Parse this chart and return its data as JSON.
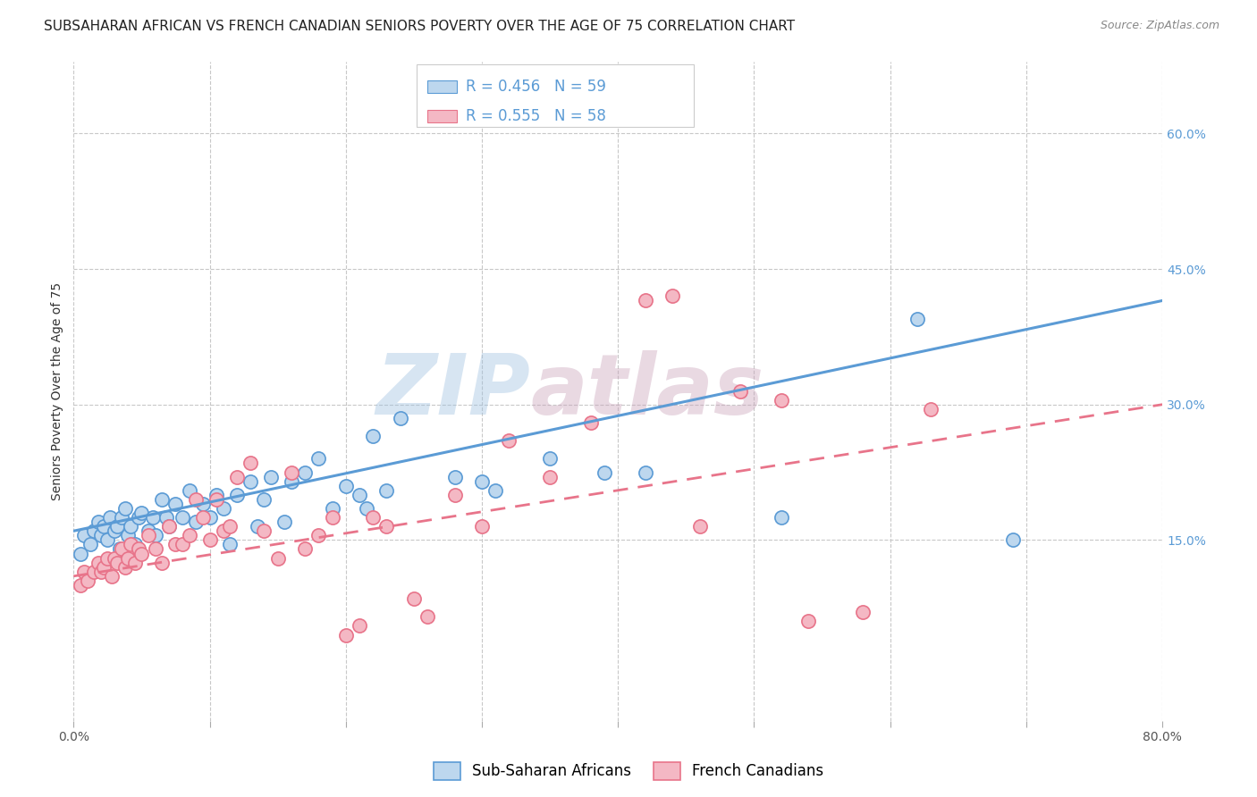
{
  "title": "SUBSAHARAN AFRICAN VS FRENCH CANADIAN SENIORS POVERTY OVER THE AGE OF 75 CORRELATION CHART",
  "source": "Source: ZipAtlas.com",
  "ylabel": "Seniors Poverty Over the Age of 75",
  "x_min": 0.0,
  "x_max": 0.8,
  "y_min": -0.05,
  "y_max": 0.68,
  "x_ticks": [
    0.0,
    0.1,
    0.2,
    0.3,
    0.4,
    0.5,
    0.6,
    0.7,
    0.8
  ],
  "y_ticks": [
    0.15,
    0.3,
    0.45,
    0.6
  ],
  "y_tick_labels": [
    "15.0%",
    "30.0%",
    "45.0%",
    "60.0%"
  ],
  "blue_color": "#5b9bd5",
  "blue_fill": "#bdd7ee",
  "pink_color": "#e8748a",
  "pink_fill": "#f4b8c4",
  "blue_label": "Sub-Saharan Africans",
  "pink_label": "French Canadians",
  "legend_r_blue": "R = 0.456",
  "legend_n_blue": "N = 59",
  "legend_r_pink": "R = 0.555",
  "legend_n_pink": "N = 58",
  "blue_scatter_x": [
    0.005,
    0.008,
    0.012,
    0.015,
    0.018,
    0.02,
    0.022,
    0.025,
    0.027,
    0.03,
    0.032,
    0.034,
    0.035,
    0.038,
    0.04,
    0.042,
    0.045,
    0.048,
    0.05,
    0.055,
    0.058,
    0.06,
    0.065,
    0.068,
    0.07,
    0.075,
    0.08,
    0.085,
    0.09,
    0.095,
    0.1,
    0.105,
    0.11,
    0.115,
    0.12,
    0.13,
    0.135,
    0.14,
    0.145,
    0.155,
    0.16,
    0.17,
    0.18,
    0.19,
    0.2,
    0.21,
    0.215,
    0.22,
    0.23,
    0.24,
    0.28,
    0.3,
    0.31,
    0.35,
    0.39,
    0.42,
    0.52,
    0.62,
    0.69
  ],
  "blue_scatter_y": [
    0.135,
    0.155,
    0.145,
    0.16,
    0.17,
    0.155,
    0.165,
    0.15,
    0.175,
    0.16,
    0.165,
    0.14,
    0.175,
    0.185,
    0.155,
    0.165,
    0.145,
    0.175,
    0.18,
    0.16,
    0.175,
    0.155,
    0.195,
    0.175,
    0.165,
    0.19,
    0.175,
    0.205,
    0.17,
    0.19,
    0.175,
    0.2,
    0.185,
    0.145,
    0.2,
    0.215,
    0.165,
    0.195,
    0.22,
    0.17,
    0.215,
    0.225,
    0.24,
    0.185,
    0.21,
    0.2,
    0.185,
    0.265,
    0.205,
    0.285,
    0.22,
    0.215,
    0.205,
    0.24,
    0.225,
    0.225,
    0.175,
    0.395,
    0.15
  ],
  "pink_scatter_x": [
    0.005,
    0.008,
    0.01,
    0.015,
    0.018,
    0.02,
    0.022,
    0.025,
    0.028,
    0.03,
    0.032,
    0.035,
    0.038,
    0.04,
    0.042,
    0.045,
    0.048,
    0.05,
    0.055,
    0.06,
    0.065,
    0.07,
    0.075,
    0.08,
    0.085,
    0.09,
    0.095,
    0.1,
    0.105,
    0.11,
    0.115,
    0.12,
    0.13,
    0.14,
    0.15,
    0.16,
    0.17,
    0.18,
    0.19,
    0.2,
    0.21,
    0.22,
    0.23,
    0.25,
    0.26,
    0.28,
    0.3,
    0.32,
    0.35,
    0.38,
    0.42,
    0.44,
    0.46,
    0.49,
    0.52,
    0.54,
    0.58,
    0.63
  ],
  "pink_scatter_y": [
    0.1,
    0.115,
    0.105,
    0.115,
    0.125,
    0.115,
    0.12,
    0.13,
    0.11,
    0.13,
    0.125,
    0.14,
    0.12,
    0.13,
    0.145,
    0.125,
    0.14,
    0.135,
    0.155,
    0.14,
    0.125,
    0.165,
    0.145,
    0.145,
    0.155,
    0.195,
    0.175,
    0.15,
    0.195,
    0.16,
    0.165,
    0.22,
    0.235,
    0.16,
    0.13,
    0.225,
    0.14,
    0.155,
    0.175,
    0.045,
    0.055,
    0.175,
    0.165,
    0.085,
    0.065,
    0.2,
    0.165,
    0.26,
    0.22,
    0.28,
    0.415,
    0.42,
    0.165,
    0.315,
    0.305,
    0.06,
    0.07,
    0.295
  ],
  "blue_line_x": [
    0.0,
    0.8
  ],
  "blue_line_y_start": 0.16,
  "blue_line_y_end": 0.415,
  "pink_line_x": [
    0.0,
    0.8
  ],
  "pink_line_y_start": 0.11,
  "pink_line_y_end": 0.3,
  "grid_color": "#c8c8c8",
  "watermark_blue": "ZIP",
  "watermark_pink": "atlas",
  "watermark_blue_color": "#9bbfe0",
  "watermark_pink_color": "#c8a0b8",
  "title_fontsize": 11,
  "axis_label_fontsize": 10,
  "tick_fontsize": 10,
  "legend_fontsize": 12
}
